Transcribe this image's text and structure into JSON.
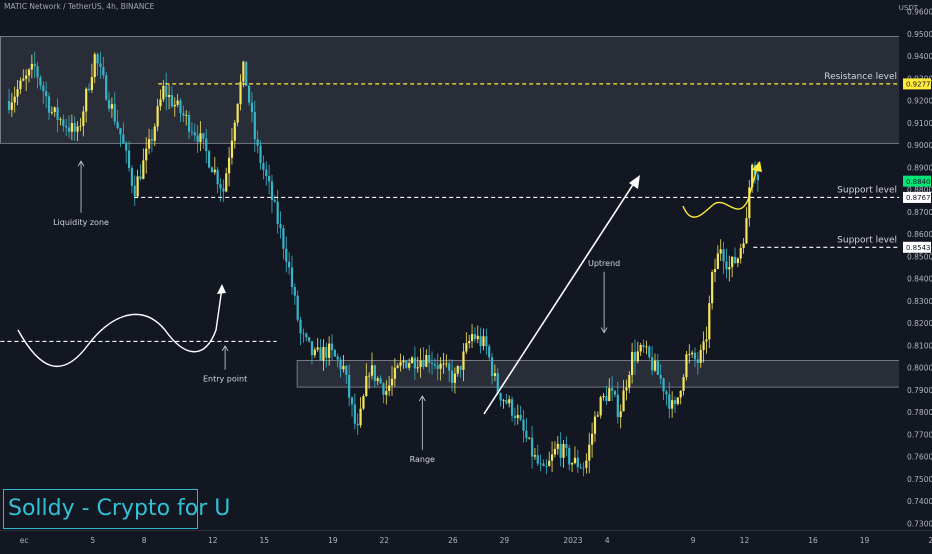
{
  "header": {
    "symbol": "MATIC Network / TetherUS, 4h, BINANCE",
    "currency": "USDT"
  },
  "watermark": {
    "text": "Solldy - Crypto for U"
  },
  "colors": {
    "background": "#131722",
    "up": "#f4e55c",
    "down": "#36b4c8",
    "dashed": "#ffffff",
    "resistance_dash": "#ffeb3b",
    "zone_fill": "#3a3f4b",
    "zone_stroke": "#8a8e98",
    "price_tag_green": "#00e676",
    "price_tag_yellow": "#ffeb3b"
  },
  "chart_data": {
    "type": "candlestick",
    "title": "",
    "ylim": [
      0.73,
      0.96
    ],
    "y_ticks": [
      0.73,
      0.74,
      0.75,
      0.76,
      0.77,
      0.78,
      0.79,
      0.8,
      0.81,
      0.82,
      0.83,
      0.84,
      0.85,
      0.86,
      0.87,
      0.88,
      0.89,
      0.9,
      0.91,
      0.92,
      0.93,
      0.94,
      0.95,
      0.96
    ],
    "x_ticks": [
      {
        "label": "ec",
        "day": 1
      },
      {
        "label": "5",
        "day": 5
      },
      {
        "label": "8",
        "day": 8
      },
      {
        "label": "12",
        "day": 12
      },
      {
        "label": "15",
        "day": 15
      },
      {
        "label": "19",
        "day": 19
      },
      {
        "label": "22",
        "day": 22
      },
      {
        "label": "26",
        "day": 26
      },
      {
        "label": "29",
        "day": 29
      },
      {
        "label": "2023",
        "day": 33
      },
      {
        "label": "4",
        "day": 35
      },
      {
        "label": "9",
        "day": 40
      },
      {
        "label": "12",
        "day": 43
      },
      {
        "label": "16",
        "day": 47
      },
      {
        "label": "19",
        "day": 50
      },
      {
        "label": "23",
        "day": 54
      },
      {
        "label": "26",
        "day": 57
      }
    ],
    "price_path": [
      {
        "day": 0.0,
        "price": 0.92
      },
      {
        "day": 1.5,
        "price": 0.935
      },
      {
        "day": 2.5,
        "price": 0.915
      },
      {
        "day": 4.0,
        "price": 0.905
      },
      {
        "day": 5.0,
        "price": 0.94
      },
      {
        "day": 6.5,
        "price": 0.905
      },
      {
        "day": 7.3,
        "price": 0.88
      },
      {
        "day": 8.2,
        "price": 0.9
      },
      {
        "day": 9.0,
        "price": 0.925
      },
      {
        "day": 10.0,
        "price": 0.915
      },
      {
        "day": 11.0,
        "price": 0.905
      },
      {
        "day": 12.5,
        "price": 0.88
      },
      {
        "day": 13.3,
        "price": 0.92
      },
      {
        "day": 13.7,
        "price": 0.935
      },
      {
        "day": 14.4,
        "price": 0.9
      },
      {
        "day": 15.2,
        "price": 0.88
      },
      {
        "day": 16.2,
        "price": 0.85
      },
      {
        "day": 17.0,
        "price": 0.815
      },
      {
        "day": 17.8,
        "price": 0.805
      },
      {
        "day": 18.6,
        "price": 0.808
      },
      {
        "day": 19.5,
        "price": 0.8
      },
      {
        "day": 20.3,
        "price": 0.77
      },
      {
        "day": 21.0,
        "price": 0.8
      },
      {
        "day": 22.0,
        "price": 0.79
      },
      {
        "day": 23.0,
        "price": 0.803
      },
      {
        "day": 24.5,
        "price": 0.805
      },
      {
        "day": 26.0,
        "price": 0.795
      },
      {
        "day": 27.0,
        "price": 0.815
      },
      {
        "day": 27.8,
        "price": 0.81
      },
      {
        "day": 28.5,
        "price": 0.79
      },
      {
        "day": 29.5,
        "price": 0.78
      },
      {
        "day": 30.6,
        "price": 0.76
      },
      {
        "day": 31.2,
        "price": 0.752
      },
      {
        "day": 32.0,
        "price": 0.765
      },
      {
        "day": 32.8,
        "price": 0.758
      },
      {
        "day": 33.6,
        "price": 0.756
      },
      {
        "day": 34.3,
        "price": 0.782
      },
      {
        "day": 35.0,
        "price": 0.79
      },
      {
        "day": 35.6,
        "price": 0.78
      },
      {
        "day": 36.3,
        "price": 0.805
      },
      {
        "day": 37.0,
        "price": 0.808
      },
      {
        "day": 38.0,
        "price": 0.795
      },
      {
        "day": 38.8,
        "price": 0.78
      },
      {
        "day": 39.5,
        "price": 0.805
      },
      {
        "day": 40.2,
        "price": 0.803
      },
      {
        "day": 40.6,
        "price": 0.81
      },
      {
        "day": 41.0,
        "price": 0.84
      },
      {
        "day": 41.5,
        "price": 0.855
      },
      {
        "day": 42.0,
        "price": 0.845
      },
      {
        "day": 42.5,
        "price": 0.85
      },
      {
        "day": 43.0,
        "price": 0.865
      },
      {
        "day": 43.3,
        "price": 0.895
      },
      {
        "day": 43.8,
        "price": 0.884
      }
    ],
    "zones": [
      {
        "name": "resistance-zone",
        "day_from": -0.5,
        "day_to": 52.5,
        "price_from": 0.901,
        "price_to": 0.949
      },
      {
        "name": "range-zone",
        "day_from": 16.8,
        "day_to": 52.5,
        "price_from": 0.7915,
        "price_to": 0.8035
      }
    ],
    "levels": [
      {
        "name": "resistance-level",
        "label": "Resistance level",
        "price": 0.9277,
        "day_from": 8.7,
        "day_to": 58.3,
        "style": "yellow",
        "tag": "0.9277"
      },
      {
        "name": "support-level-1",
        "label": "Support level",
        "price": 0.8767,
        "day_from": 7.3,
        "day_to": 58.3,
        "style": "white",
        "tag": "0.8767"
      },
      {
        "name": "support-level-2",
        "label": "Support level",
        "price": 0.8543,
        "day_from": 43.4,
        "day_to": 58.3,
        "style": "white",
        "tag": "0.8543"
      },
      {
        "name": "entry-level",
        "label": "",
        "price": 0.812,
        "day_from": -0.5,
        "day_to": 15.6,
        "style": "white",
        "tag": ""
      }
    ],
    "current_price": {
      "value": 0.884,
      "label": "0.8840"
    },
    "annotations": [
      {
        "name": "liquidity-zone",
        "text": "Liquidity zone",
        "day": 4.2,
        "price": 0.868,
        "arrow_to_price": 0.893
      },
      {
        "name": "entry-point",
        "text": "Entry point",
        "day": 12.6,
        "price": 0.7975,
        "arrow_to_price": 0.81
      },
      {
        "name": "range",
        "text": "Range",
        "day": 24.1,
        "price": 0.7615,
        "arrow_to_price": 0.7875
      },
      {
        "name": "uptrend",
        "text": "Uptrend",
        "day": 34.7,
        "price": 0.846,
        "arrow_to_price": 0.816
      }
    ]
  }
}
